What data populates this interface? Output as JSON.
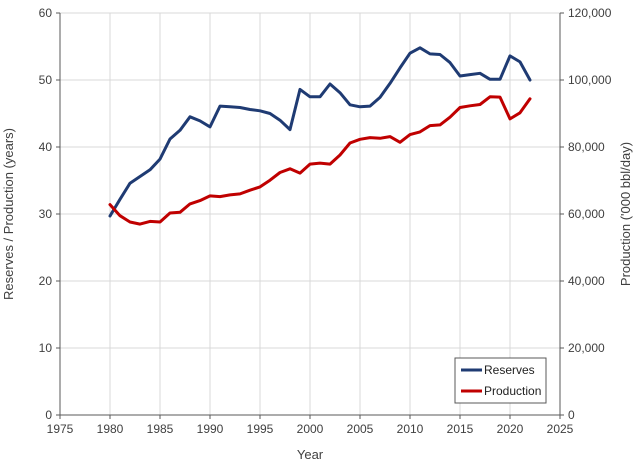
{
  "chart_data": {
    "type": "line",
    "xlabel": "Year",
    "ylabel_left": "Reserves / Production (years)",
    "ylabel_right": "Production ('000 bbl/day)",
    "xlim": [
      1975,
      2025
    ],
    "ylim_left": [
      0,
      60
    ],
    "ylim_right": [
      0,
      120000
    ],
    "grid": true,
    "legend_position": "bottom-right",
    "x_ticks": [
      "1975",
      "1980",
      "1985",
      "1990",
      "1995",
      "2000",
      "2005",
      "2010",
      "2015",
      "2020",
      "2025"
    ],
    "y_left_ticks": [
      "0",
      "10",
      "20",
      "30",
      "40",
      "50",
      "60"
    ],
    "y_right_ticks": [
      "0",
      "20,000",
      "40,000",
      "60,000",
      "80,000",
      "100,000",
      "120,000"
    ],
    "series": [
      {
        "name": "Reserves",
        "axis": "left",
        "color": "#1f3b73",
        "x": [
          1980,
          1981,
          1982,
          1983,
          1984,
          1985,
          1986,
          1987,
          1988,
          1989,
          1990,
          1991,
          1992,
          1993,
          1994,
          1995,
          1996,
          1997,
          1998,
          1999,
          2000,
          2001,
          2002,
          2003,
          2004,
          2005,
          2006,
          2007,
          2008,
          2009,
          2010,
          2011,
          2012,
          2013,
          2014,
          2015,
          2016,
          2017,
          2018,
          2019,
          2020,
          2021,
          2022
        ],
        "values": [
          29.7,
          32.2,
          34.6,
          35.6,
          36.6,
          38.2,
          41.2,
          42.5,
          44.5,
          43.9,
          43.0,
          46.1,
          46.0,
          45.9,
          45.6,
          45.4,
          45.0,
          44.0,
          42.6,
          48.6,
          47.5,
          47.5,
          49.4,
          48.1,
          46.3,
          46.0,
          46.1,
          47.4,
          49.5,
          51.8,
          54.0,
          54.8,
          53.9,
          53.8,
          52.6,
          50.6,
          50.8,
          51.0,
          50.1,
          50.1,
          53.6,
          52.7,
          50.0
        ]
      },
      {
        "name": "Production",
        "axis": "right",
        "color": "#c00000",
        "x": [
          1980,
          1981,
          1982,
          1983,
          1984,
          1985,
          1986,
          1987,
          1988,
          1989,
          1990,
          1991,
          1992,
          1993,
          1994,
          1995,
          1996,
          1997,
          1998,
          1999,
          2000,
          2001,
          2002,
          2003,
          2004,
          2005,
          2006,
          2007,
          2008,
          2009,
          2010,
          2011,
          2012,
          2013,
          2014,
          2015,
          2016,
          2017,
          2018,
          2019,
          2020,
          2021,
          2022
        ],
        "values": [
          62800,
          59500,
          57600,
          57000,
          57800,
          57600,
          60300,
          60500,
          63000,
          64000,
          65400,
          65200,
          65700,
          66000,
          67100,
          68100,
          70100,
          72400,
          73500,
          72200,
          74900,
          75200,
          74900,
          77600,
          81200,
          82300,
          82800,
          82600,
          83100,
          81400,
          83700,
          84500,
          86400,
          86600,
          88900,
          91800,
          92300,
          92700,
          95000,
          94900,
          88400,
          90200,
          94400
        ]
      }
    ]
  }
}
